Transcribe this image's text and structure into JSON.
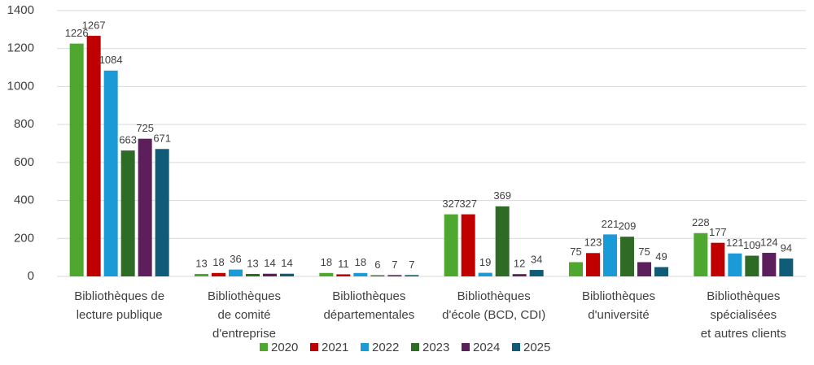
{
  "chart_data": {
    "type": "bar",
    "categories": [
      [
        "Bibliothèques de",
        "lecture publique"
      ],
      [
        "Bibliothèques",
        "de comité",
        "d'entreprise"
      ],
      [
        "Bibliothèques",
        "départementales"
      ],
      [
        "Bibliothèques",
        "d'école (BCD, CDI)"
      ],
      [
        "Bibliothèques",
        "d'université"
      ],
      [
        "Bibliothèques",
        "spécialisées",
        "et autres clients"
      ]
    ],
    "series": [
      {
        "name": "2020",
        "color": "#4ea72e",
        "values": [
          1226,
          13,
          18,
          327,
          75,
          228
        ]
      },
      {
        "name": "2021",
        "color": "#c00000",
        "values": [
          1267,
          18,
          11,
          327,
          123,
          177
        ]
      },
      {
        "name": "2022",
        "color": "#1a9bd7",
        "values": [
          1084,
          36,
          18,
          19,
          221,
          121
        ]
      },
      {
        "name": "2023",
        "color": "#2e6b24",
        "values": [
          663,
          13,
          6,
          369,
          209,
          109
        ]
      },
      {
        "name": "2024",
        "color": "#5c1f5c",
        "values": [
          725,
          14,
          7,
          12,
          75,
          124
        ]
      },
      {
        "name": "2025",
        "color": "#0f5b78",
        "values": [
          671,
          14,
          7,
          34,
          49,
          94
        ]
      }
    ],
    "ylim": [
      0,
      1400
    ],
    "yticks": [
      0,
      200,
      400,
      600,
      800,
      1000,
      1200,
      1400
    ],
    "grid": true,
    "legend": "bottom"
  }
}
